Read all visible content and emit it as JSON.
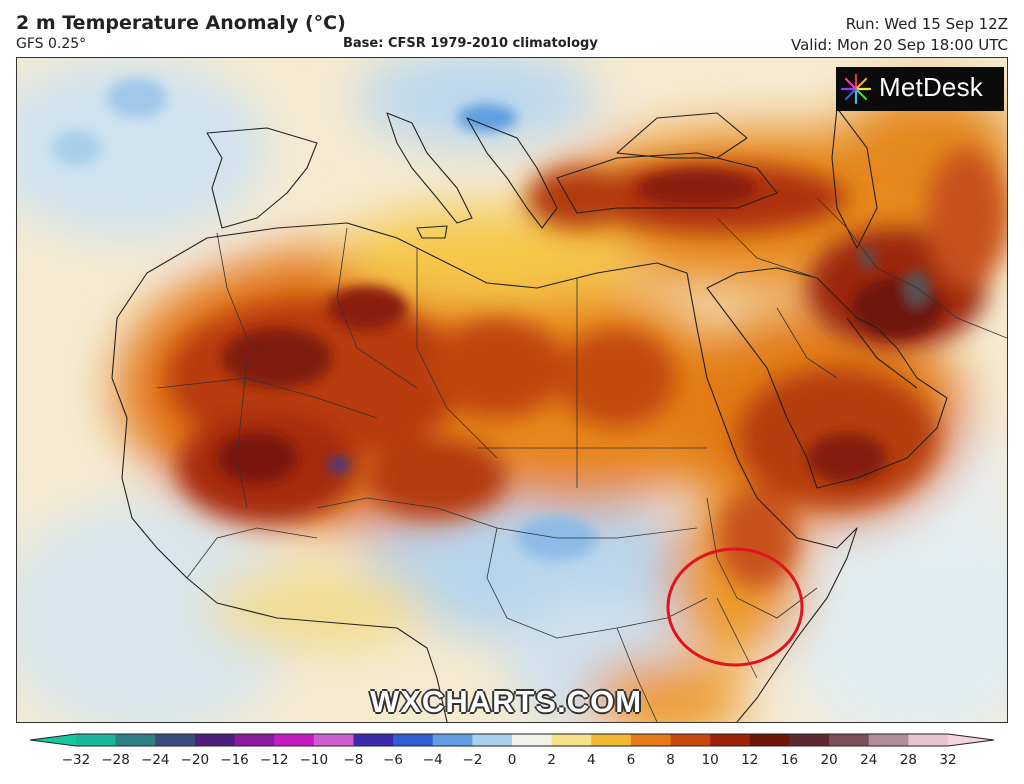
{
  "header": {
    "title": "2 m Temperature Anomaly (°C)",
    "model": "GFS 0.25°",
    "base": "Base: CFSR 1979-2010 climatology",
    "run": "Run: Wed 15 Sep 12Z",
    "valid": "Valid: Mon 20 Sep 18:00 UTC"
  },
  "logo": {
    "name": "MetDesk",
    "icon": "starburst-icon"
  },
  "watermark": "WXCHARTS.COM",
  "colorbar": {
    "ticks": [
      "−32",
      "−28",
      "−24",
      "−20",
      "−16",
      "−12",
      "−10",
      "−8",
      "−6",
      "−4",
      "−2",
      "0",
      "2",
      "4",
      "6",
      "8",
      "10",
      "12",
      "16",
      "20",
      "24",
      "28",
      "32"
    ],
    "colors": [
      "#1bb59a",
      "#2e7f86",
      "#3a4c7a",
      "#4d1e7d",
      "#8a1a9e",
      "#c41cc1",
      "#cc5ed1",
      "#3b2ba8",
      "#2f5fd0",
      "#5f9ee0",
      "#a9d0ee",
      "#f2f1ea",
      "#f6e08a",
      "#f2b733",
      "#e57b17",
      "#c8480f",
      "#9c2208",
      "#6e1408",
      "#5c2a2e",
      "#7c4f5a",
      "#b48c98",
      "#e7c4cd"
    ],
    "end_left": "#14c8a0",
    "end_right": "#f3d4dc"
  },
  "annotation": {
    "shape": "circle",
    "color": "#e0141c"
  }
}
